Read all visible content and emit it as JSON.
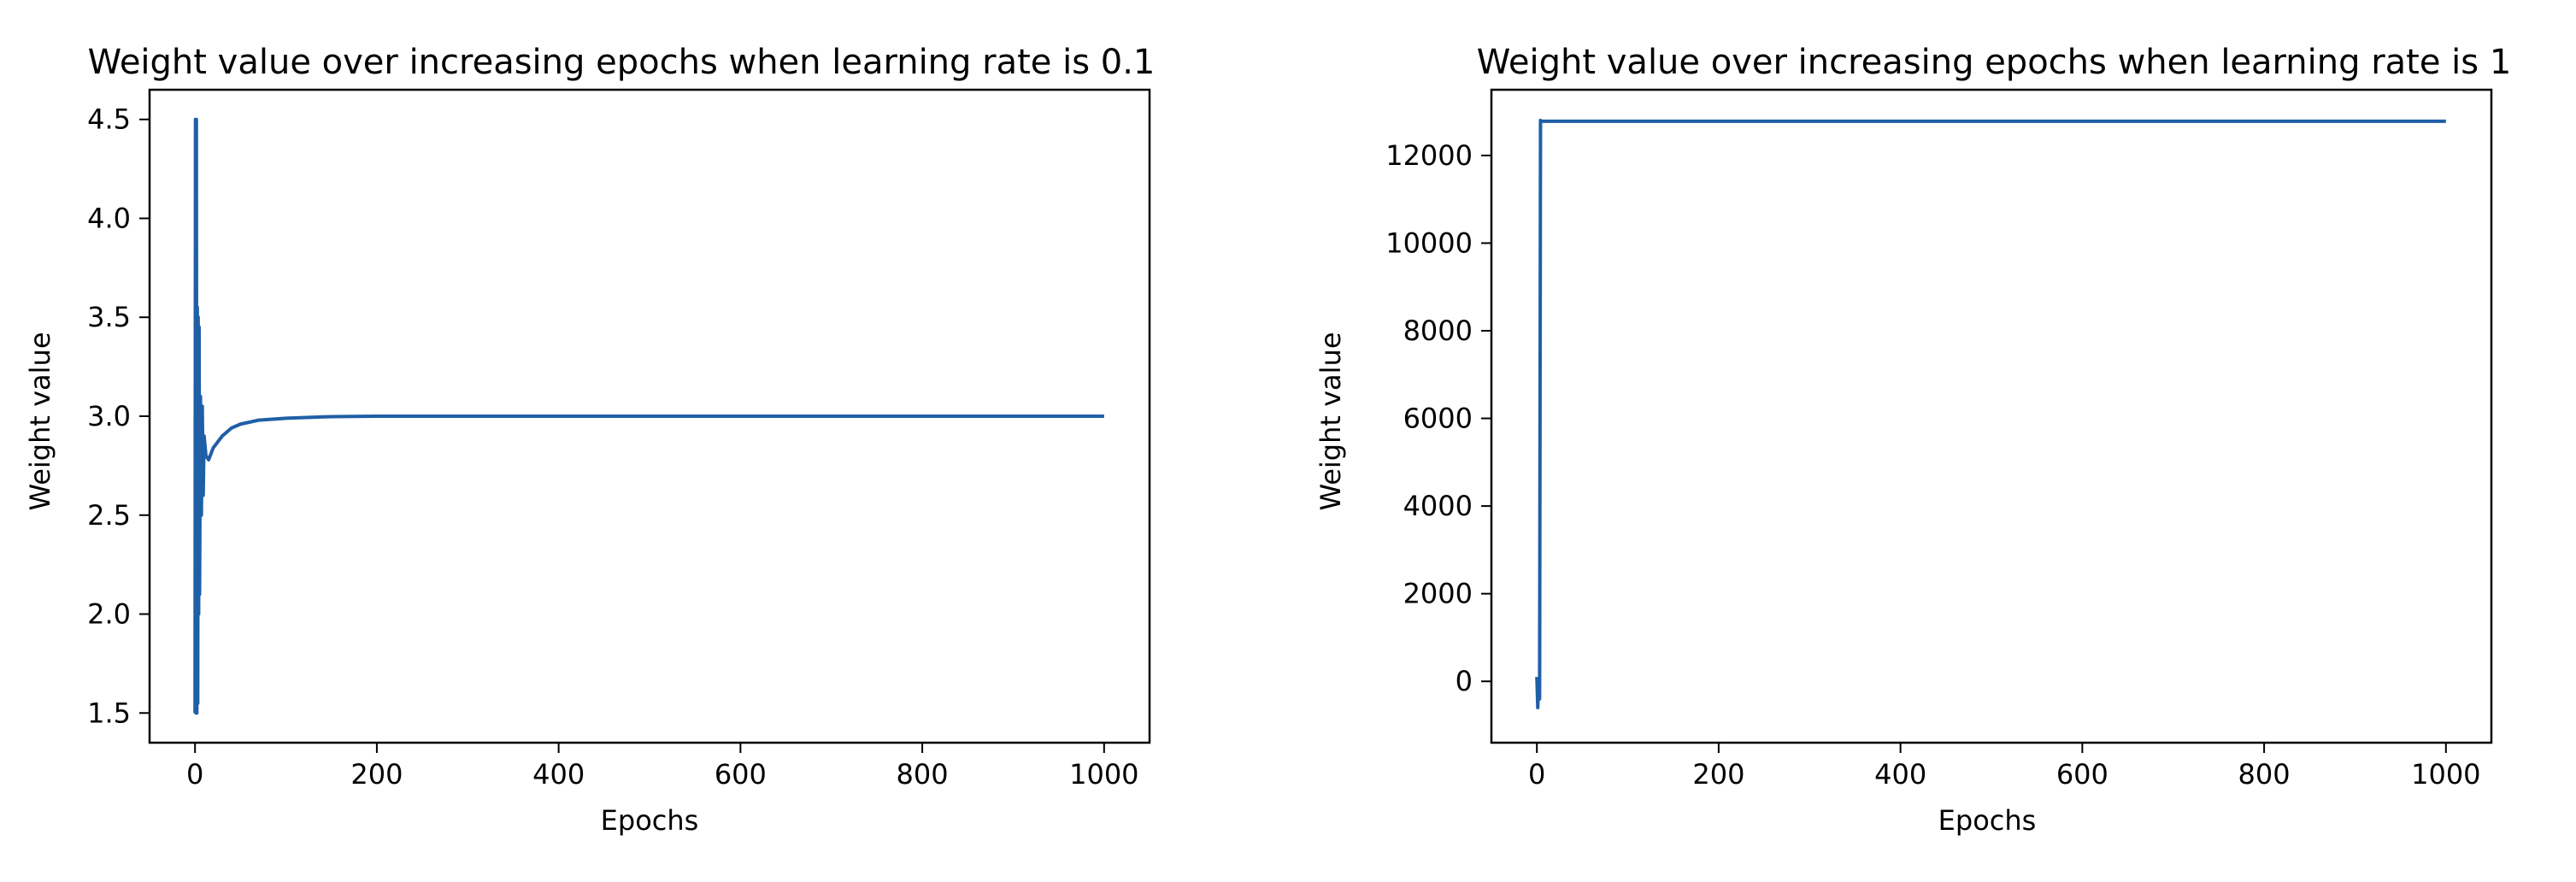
{
  "chart_data": [
    {
      "type": "line",
      "title": "Weight value over increasing epochs when learning rate is 0.1",
      "xlabel": "Epochs",
      "ylabel": "Weight value",
      "xlim": [
        -50,
        1050
      ],
      "ylim": [
        1.35,
        4.65
      ],
      "xticks": [
        0,
        200,
        400,
        600,
        800,
        1000
      ],
      "xtick_labels": [
        "0",
        "200",
        "400",
        "600",
        "800",
        "1000"
      ],
      "yticks": [
        1.5,
        2.0,
        2.5,
        3.0,
        3.5,
        4.0,
        4.5
      ],
      "ytick_labels": [
        "1.5",
        "2.0",
        "2.5",
        "3.0",
        "3.5",
        "4.0",
        "4.5"
      ],
      "grid": false,
      "line_color": "#1f5fa6",
      "series": [
        {
          "x": [
            0,
            0.5,
            1,
            1.5,
            2,
            2.5,
            3,
            3.5,
            4,
            4.5,
            5,
            6,
            7,
            8,
            9,
            10,
            12,
            15,
            20,
            30,
            40,
            50,
            70,
            100,
            150,
            200,
            300,
            400,
            500,
            600,
            700,
            800,
            900,
            1000
          ],
          "values": [
            1.5,
            4.5,
            1.5,
            4.5,
            1.5,
            3.55,
            1.55,
            3.5,
            2.0,
            3.45,
            2.1,
            3.1,
            2.5,
            3.05,
            2.6,
            2.9,
            2.8,
            2.78,
            2.84,
            2.9,
            2.94,
            2.96,
            2.98,
            2.99,
            2.998,
            3.0,
            3.0,
            3.0,
            3.0,
            3.0,
            3.0,
            3.0,
            3.0,
            3.0
          ]
        }
      ]
    },
    {
      "type": "line",
      "title": "Weight value over increasing epochs when learning rate is 1",
      "xlabel": "Epochs",
      "ylabel": "Weight value",
      "xlim": [
        -50,
        1050
      ],
      "ylim": [
        -1400,
        13500
      ],
      "xticks": [
        0,
        200,
        400,
        600,
        800,
        1000
      ],
      "xtick_labels": [
        "0",
        "200",
        "400",
        "600",
        "800",
        "1000"
      ],
      "yticks": [
        0,
        2000,
        4000,
        6000,
        8000,
        10000,
        12000
      ],
      "ytick_labels": [
        "0",
        "2000",
        "4000",
        "6000",
        "8000",
        "10000",
        "12000"
      ],
      "grid": false,
      "line_color": "#1f5fa6",
      "series": [
        {
          "x": [
            0,
            1,
            2,
            3,
            4,
            5,
            6,
            1000
          ],
          "values": [
            100,
            -600,
            0,
            -400,
            12800,
            12780,
            12780,
            12780
          ]
        }
      ]
    }
  ]
}
